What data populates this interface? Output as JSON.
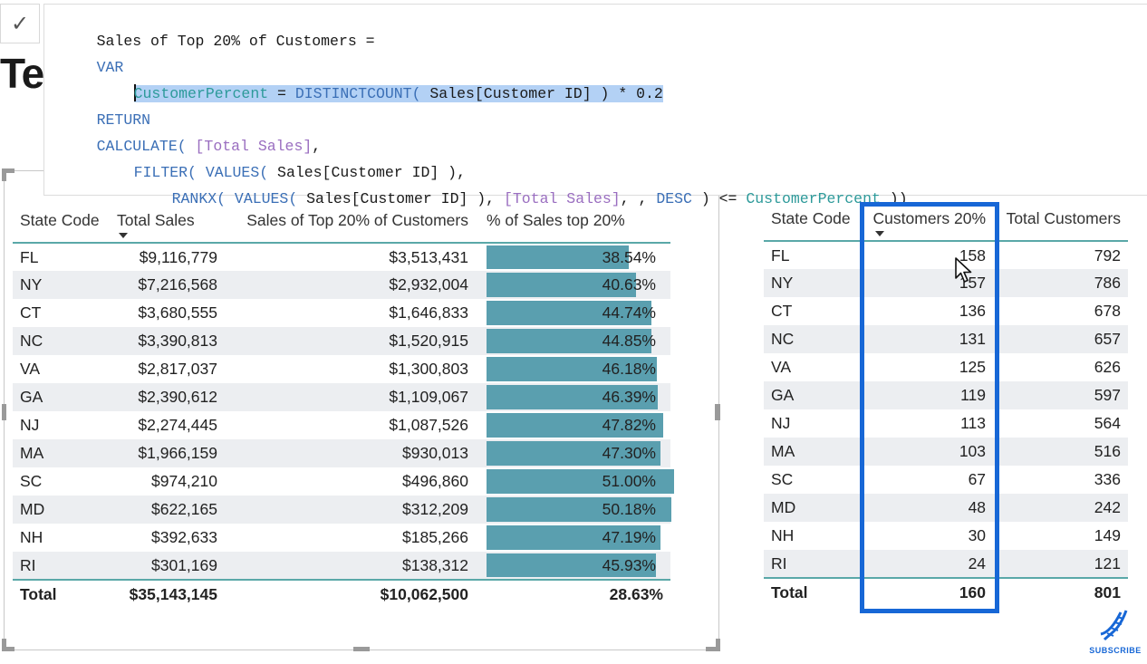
{
  "formula_bar": {
    "commit_glyph": "✓",
    "lines": [
      {
        "parts": [
          {
            "t": "Sales of Top 20% of Customers = ",
            "c": "tx"
          }
        ]
      },
      {
        "parts": [
          {
            "t": "VAR",
            "c": "kw"
          }
        ]
      },
      {
        "parts": [
          {
            "t": "    ",
            "c": "tx"
          },
          {
            "t": "CustomerPercent = DISTINCTCOUNT( Sales[Customer ID] ) * 0.2",
            "c": "sel-mixed"
          }
        ]
      },
      {
        "parts": [
          {
            "t": "RETURN",
            "c": "kw"
          }
        ]
      },
      {
        "parts": [
          {
            "t": "CALCULATE( ",
            "c": "fn"
          },
          {
            "t": "[Total Sales]",
            "c": "ms"
          },
          {
            "t": ",",
            "c": "tx"
          }
        ]
      },
      {
        "parts": [
          {
            "t": "    ",
            "c": "tx"
          },
          {
            "t": "FILTER( VALUES( ",
            "c": "fn"
          },
          {
            "t": "Sales[Customer ID] ),",
            "c": "tx"
          }
        ]
      },
      {
        "parts": [
          {
            "t": "        ",
            "c": "tx"
          },
          {
            "t": "RANKX( VALUES( ",
            "c": "fn"
          },
          {
            "t": "Sales[Customer ID] ), ",
            "c": "tx"
          },
          {
            "t": "[Total Sales]",
            "c": "ms"
          },
          {
            "t": ", , ",
            "c": "tx"
          },
          {
            "t": "DESC",
            "c": "kw"
          },
          {
            "t": " ) <= ",
            "c": "tx"
          },
          {
            "t": "CustomerPercent",
            "c": "vr"
          },
          {
            "t": " ))",
            "c": "tx"
          }
        ]
      }
    ],
    "selected_line": {
      "var_name": "CustomerPercent",
      "eq": " = ",
      "fn": "DISTINCTCOUNT(",
      "arg": " Sales[Customer ID] ) * 0.2"
    }
  },
  "page_title": "Te",
  "left_table": {
    "headers": [
      "State Code",
      "Total Sales",
      "Sales of Top 20% of Customers",
      "% of Sales top 20%"
    ],
    "rows": [
      {
        "state": "FL",
        "total_sales": "$9,116,779",
        "top20": "$3,513,431",
        "pct": "38.54%",
        "pct_value": 38.54
      },
      {
        "state": "NY",
        "total_sales": "$7,216,568",
        "top20": "$2,932,004",
        "pct": "40.63%",
        "pct_value": 40.63
      },
      {
        "state": "CT",
        "total_sales": "$3,680,555",
        "top20": "$1,646,833",
        "pct": "44.74%",
        "pct_value": 44.74
      },
      {
        "state": "NC",
        "total_sales": "$3,390,813",
        "top20": "$1,520,915",
        "pct": "44.85%",
        "pct_value": 44.85
      },
      {
        "state": "VA",
        "total_sales": "$2,817,037",
        "top20": "$1,300,803",
        "pct": "46.18%",
        "pct_value": 46.18
      },
      {
        "state": "GA",
        "total_sales": "$2,390,612",
        "top20": "$1,109,067",
        "pct": "46.39%",
        "pct_value": 46.39
      },
      {
        "state": "NJ",
        "total_sales": "$2,274,445",
        "top20": "$1,087,526",
        "pct": "47.82%",
        "pct_value": 47.82
      },
      {
        "state": "MA",
        "total_sales": "$1,966,159",
        "top20": "$930,013",
        "pct": "47.30%",
        "pct_value": 47.3
      },
      {
        "state": "SC",
        "total_sales": "$974,210",
        "top20": "$496,860",
        "pct": "51.00%",
        "pct_value": 51.0
      },
      {
        "state": "MD",
        "total_sales": "$622,165",
        "top20": "$312,209",
        "pct": "50.18%",
        "pct_value": 50.18
      },
      {
        "state": "NH",
        "total_sales": "$392,633",
        "top20": "$185,266",
        "pct": "47.19%",
        "pct_value": 47.19
      },
      {
        "state": "RI",
        "total_sales": "$301,169",
        "top20": "$138,312",
        "pct": "45.93%",
        "pct_value": 45.93
      }
    ],
    "total": {
      "label": "Total",
      "total_sales": "$35,143,145",
      "top20": "$10,062,500",
      "pct": "28.63%"
    },
    "bar_max_pct": 51.0,
    "bar_color": "#5a9faf"
  },
  "right_table": {
    "headers": [
      "State Code",
      "Customers 20%",
      "Total Customers"
    ],
    "rows": [
      {
        "state": "FL",
        "c20": "158",
        "total": "792"
      },
      {
        "state": "NY",
        "c20": "157",
        "total": "786"
      },
      {
        "state": "CT",
        "c20": "136",
        "total": "678"
      },
      {
        "state": "NC",
        "c20": "131",
        "total": "657"
      },
      {
        "state": "VA",
        "c20": "125",
        "total": "626"
      },
      {
        "state": "GA",
        "c20": "119",
        "total": "597"
      },
      {
        "state": "NJ",
        "c20": "113",
        "total": "564"
      },
      {
        "state": "MA",
        "c20": "103",
        "total": "516"
      },
      {
        "state": "SC",
        "c20": "67",
        "total": "336"
      },
      {
        "state": "MD",
        "c20": "48",
        "total": "242"
      },
      {
        "state": "NH",
        "c20": "30",
        "total": "149"
      },
      {
        "state": "RI",
        "c20": "24",
        "total": "121"
      }
    ],
    "total": {
      "label": "Total",
      "c20": "160",
      "total": "801"
    }
  },
  "highlight_color": "#1767d6",
  "subscribe": {
    "label": "SUBSCRIBE",
    "icon": "dna-icon"
  }
}
